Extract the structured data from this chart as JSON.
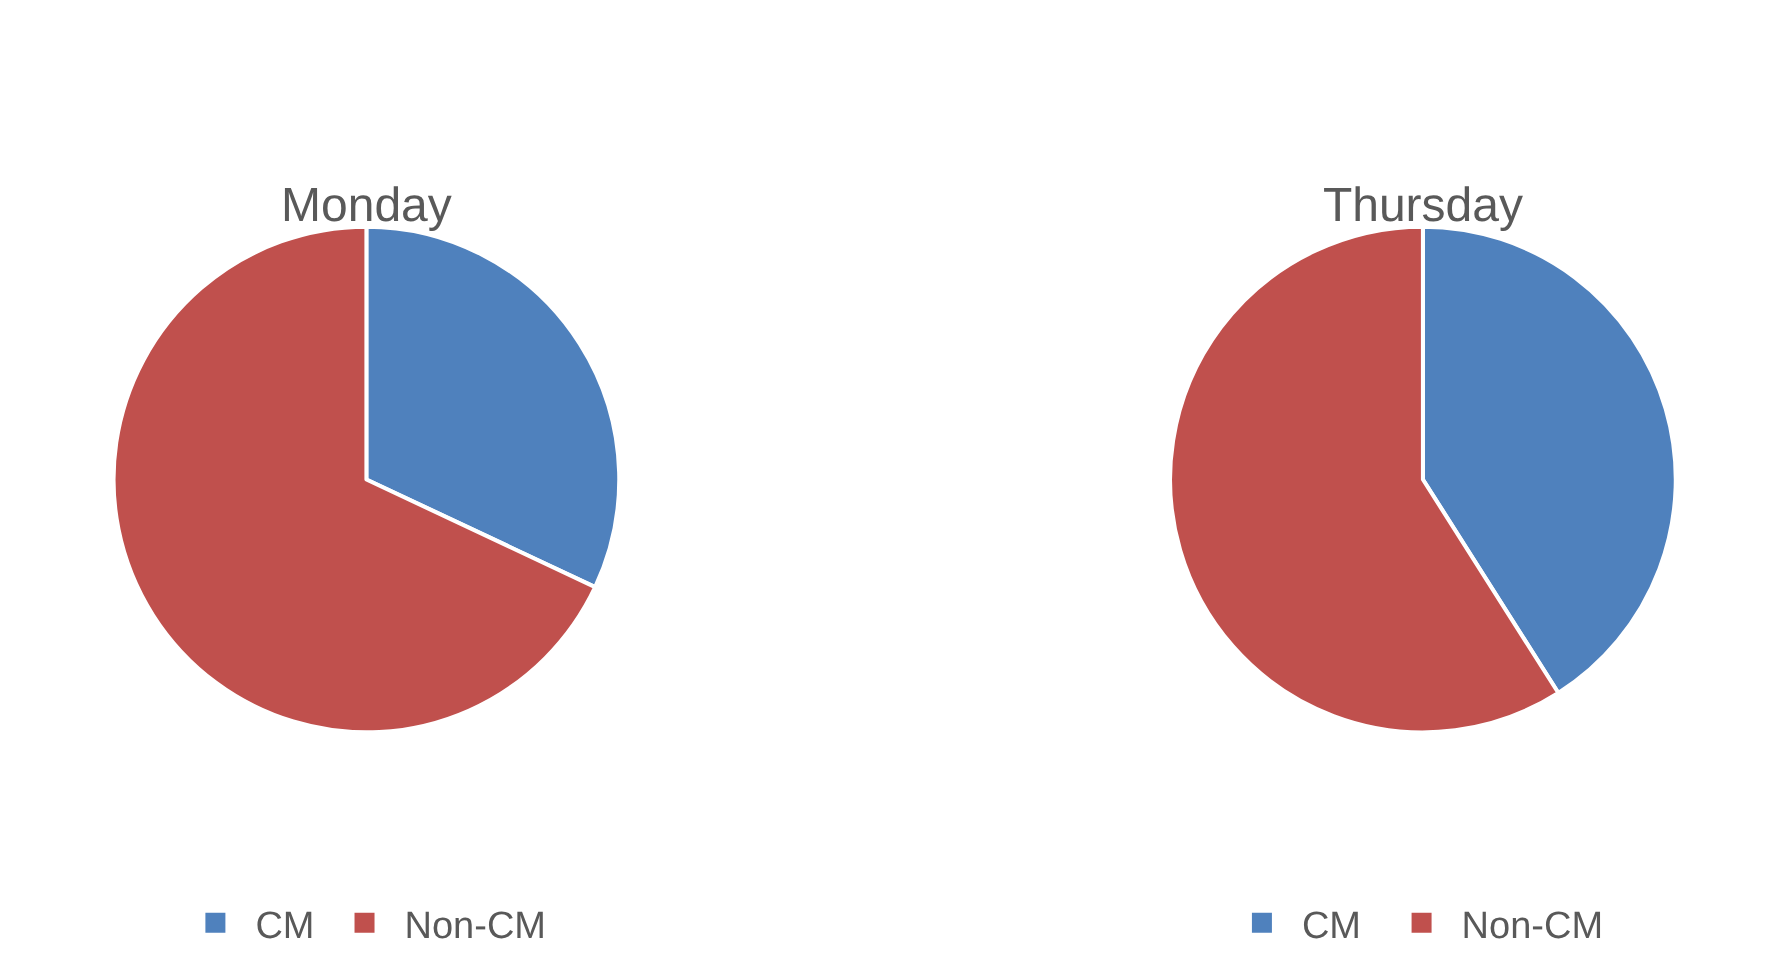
{
  "chart_data": [
    {
      "type": "pie",
      "title": "Monday",
      "categories": [
        "CM",
        "Non-CM"
      ],
      "values": [
        32,
        68
      ],
      "colors": [
        "#4f81bd",
        "#c0504d"
      ],
      "legend": "bottom"
    },
    {
      "type": "pie",
      "title": "Thursday",
      "categories": [
        "CM",
        "Non-CM"
      ],
      "values": [
        41,
        59
      ],
      "colors": [
        "#4f81bd",
        "#c0504d"
      ],
      "legend": "bottom"
    }
  ]
}
